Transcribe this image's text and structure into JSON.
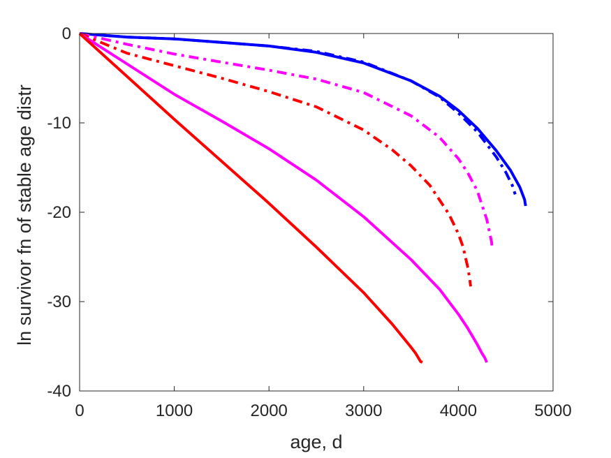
{
  "chart_data": {
    "type": "line",
    "xlabel": "age, d",
    "ylabel": "ln survivor fn of stable age distr",
    "xlim": [
      0,
      5000
    ],
    "ylim": [
      -40,
      0
    ],
    "xticks": [
      0,
      1000,
      2000,
      3000,
      4000,
      5000
    ],
    "yticks": [
      0,
      -10,
      -20,
      -30,
      -40
    ],
    "xtick_labels": [
      "0",
      "1000",
      "2000",
      "3000",
      "4000",
      "5000"
    ],
    "ytick_labels": [
      "0",
      "-10",
      "-20",
      "-30",
      "-40"
    ],
    "grid": false,
    "legend": "none",
    "series": [
      {
        "color": "#0000ff",
        "style": "solid",
        "x": [
          0,
          500,
          1000,
          1500,
          2000,
          2500,
          3000,
          3500,
          3800,
          4000,
          4200,
          4400,
          4550,
          4650,
          4700,
          4710
        ],
        "y": [
          0,
          -0.4,
          -0.6,
          -1.0,
          -1.4,
          -2.1,
          -3.3,
          -5.3,
          -7.0,
          -8.6,
          -10.6,
          -13.1,
          -15.3,
          -17.2,
          -18.6,
          -19.3
        ]
      },
      {
        "color": "#0000ff",
        "style": "dashdot",
        "x": [
          0,
          500,
          1000,
          1500,
          2000,
          2500,
          3000,
          3500,
          3800,
          4000,
          4200,
          4400,
          4500,
          4570,
          4600
        ],
        "y": [
          0,
          -0.4,
          -0.6,
          -1.0,
          -1.4,
          -2.0,
          -3.2,
          -5.3,
          -7.1,
          -8.9,
          -11.0,
          -13.8,
          -15.5,
          -17.0,
          -18.0
        ]
      },
      {
        "color": "#ff00ff",
        "style": "dashdot",
        "x": [
          0,
          500,
          1000,
          1500,
          2000,
          2500,
          3000,
          3500,
          3800,
          4000,
          4100,
          4200,
          4300,
          4350,
          4360
        ],
        "y": [
          0,
          -1.2,
          -2.3,
          -3.2,
          -4.1,
          -5.1,
          -6.6,
          -9.2,
          -11.6,
          -14.0,
          -15.6,
          -17.6,
          -20.8,
          -23.3,
          -24.2
        ]
      },
      {
        "color": "#ff0000",
        "style": "dashdot",
        "x": [
          0,
          500,
          1000,
          1500,
          2000,
          2500,
          3000,
          3300,
          3500,
          3700,
          3900,
          4000,
          4050,
          4100,
          4120,
          4130
        ],
        "y": [
          0,
          -2.2,
          -3.6,
          -5.0,
          -6.5,
          -8.2,
          -10.8,
          -13.0,
          -14.8,
          -17.0,
          -20.2,
          -22.4,
          -23.9,
          -26.2,
          -27.5,
          -28.3
        ]
      },
      {
        "color": "#ff00ff",
        "style": "solid",
        "x": [
          0,
          500,
          1000,
          1500,
          2000,
          2500,
          3000,
          3500,
          3800,
          4000,
          4100,
          4200,
          4250,
          4280,
          4300
        ],
        "y": [
          0,
          -3.4,
          -6.8,
          -9.8,
          -12.9,
          -16.4,
          -20.5,
          -25.3,
          -28.6,
          -31.4,
          -33.0,
          -34.8,
          -35.8,
          -36.3,
          -36.8
        ]
      },
      {
        "color": "#ff0000",
        "style": "solid",
        "x": [
          0,
          500,
          1000,
          1500,
          2000,
          2500,
          3000,
          3300,
          3500,
          3550,
          3600,
          3620
        ],
        "y": [
          0,
          -4.8,
          -9.6,
          -14.3,
          -19.0,
          -23.9,
          -29.0,
          -32.5,
          -35.1,
          -35.8,
          -36.7,
          -36.8
        ]
      }
    ]
  }
}
